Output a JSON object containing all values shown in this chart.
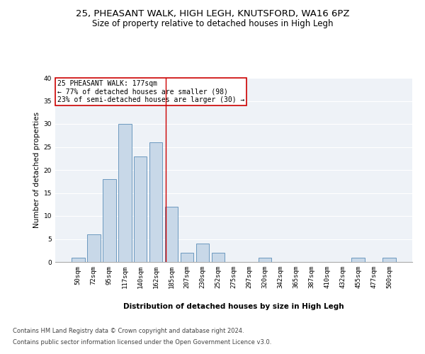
{
  "title1": "25, PHEASANT WALK, HIGH LEGH, KNUTSFORD, WA16 6PZ",
  "title2": "Size of property relative to detached houses in High Legh",
  "xlabel": "Distribution of detached houses by size in High Legh",
  "ylabel": "Number of detached properties",
  "bar_labels": [
    "50sqm",
    "72sqm",
    "95sqm",
    "117sqm",
    "140sqm",
    "162sqm",
    "185sqm",
    "207sqm",
    "230sqm",
    "252sqm",
    "275sqm",
    "297sqm",
    "320sqm",
    "342sqm",
    "365sqm",
    "387sqm",
    "410sqm",
    "432sqm",
    "455sqm",
    "477sqm",
    "500sqm"
  ],
  "bar_values": [
    1,
    6,
    18,
    30,
    23,
    26,
    12,
    2,
    4,
    2,
    0,
    0,
    1,
    0,
    0,
    0,
    0,
    0,
    1,
    0,
    1
  ],
  "bar_color": "#c8d8e8",
  "bar_edge_color": "#5b8db8",
  "annotation_line1": "25 PHEASANT WALK: 177sqm",
  "annotation_line2": "← 77% of detached houses are smaller (98)",
  "annotation_line3": "23% of semi-detached houses are larger (30) →",
  "vline_color": "#cc0000",
  "annotation_box_edge_color": "#cc0000",
  "ylim": [
    0,
    40
  ],
  "yticks": [
    0,
    5,
    10,
    15,
    20,
    25,
    30,
    35,
    40
  ],
  "bg_color": "#eef2f7",
  "footer1": "Contains HM Land Registry data © Crown copyright and database right 2024.",
  "footer2": "Contains public sector information licensed under the Open Government Licence v3.0.",
  "title1_fontsize": 9.5,
  "title2_fontsize": 8.5,
  "annotation_fontsize": 7.0,
  "axis_label_fontsize": 7.5,
  "ylabel_fontsize": 7.5,
  "tick_fontsize": 6.5,
  "footer_fontsize": 6.0
}
